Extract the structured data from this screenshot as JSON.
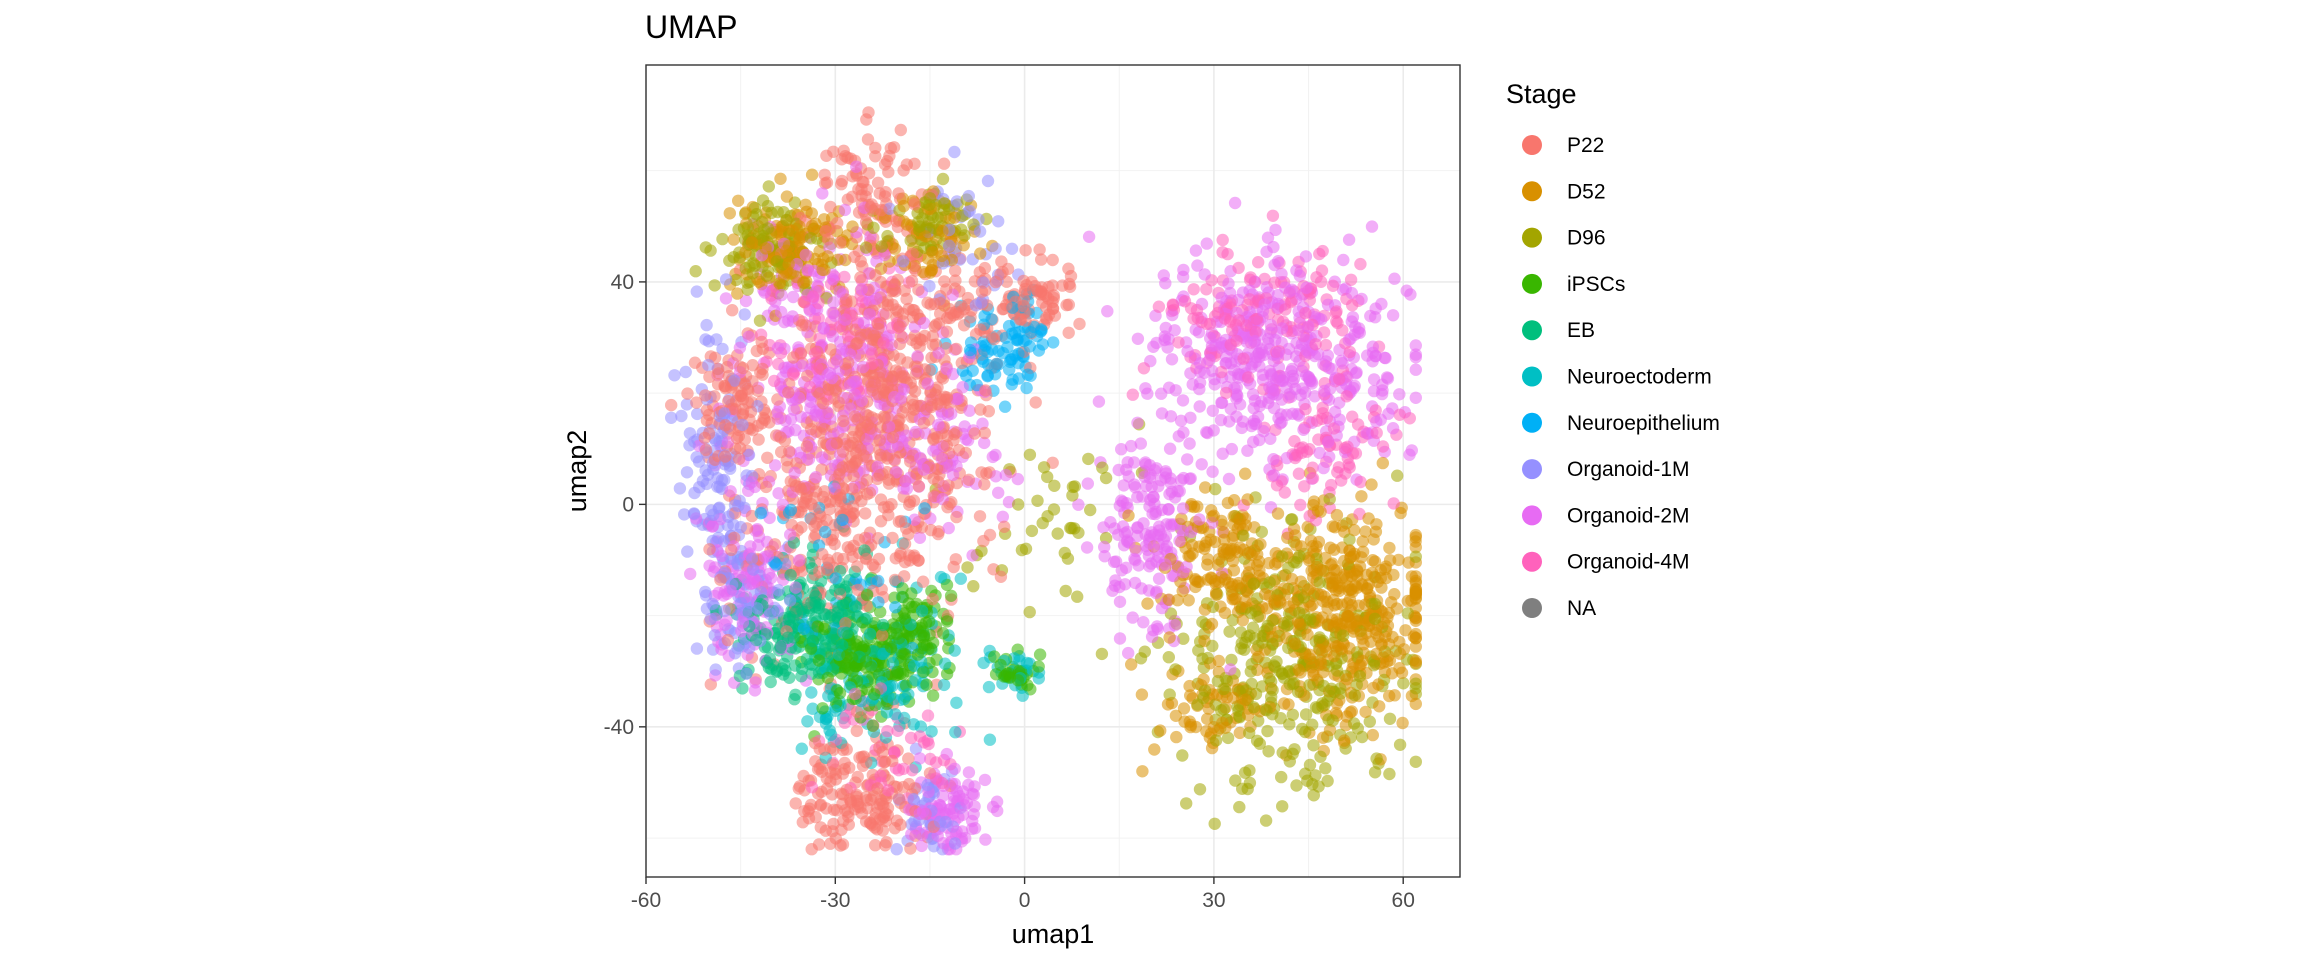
{
  "chart_data": {
    "type": "scatter",
    "title": "UMAP",
    "xlabel": "umap1",
    "ylabel": "umap2",
    "xlim": [
      -60,
      69
    ],
    "ylim": [
      -67,
      79
    ],
    "x_ticks": [
      -60,
      -30,
      0,
      30,
      60
    ],
    "y_ticks": [
      -40,
      0,
      40
    ],
    "x_tick_labels": [
      "-60",
      "-30",
      "0",
      "30",
      "60"
    ],
    "y_tick_labels": [
      "-40",
      "0",
      "40"
    ],
    "grid": true,
    "legend": {
      "title": "Stage",
      "position": "right",
      "entries": [
        {
          "label": "P22",
          "color": "#F8766D"
        },
        {
          "label": "D52",
          "color": "#D89000"
        },
        {
          "label": "D96",
          "color": "#A3A500"
        },
        {
          "label": "iPSCs",
          "color": "#39B600"
        },
        {
          "label": "EB",
          "color": "#00BF7D"
        },
        {
          "label": "Neuroectoderm",
          "color": "#00BFC4"
        },
        {
          "label": "Neuroepithelium",
          "color": "#00B0F6"
        },
        {
          "label": "Organoid-1M",
          "color": "#9590FF"
        },
        {
          "label": "Organoid-2M",
          "color": "#E76BF3"
        },
        {
          "label": "Organoid-4M",
          "color": "#FF62BC"
        },
        {
          "label": "NA",
          "color": "#7F7F7F"
        }
      ]
    },
    "clusters": [
      {
        "series": "P22",
        "cx": -22,
        "cy": 20,
        "sx": 9,
        "sy": 14,
        "n": 520
      },
      {
        "series": "P22",
        "cx": -46,
        "cy": 18,
        "sx": 4,
        "sy": 5,
        "n": 90
      },
      {
        "series": "P22",
        "cx": -26,
        "cy": -52,
        "sx": 5,
        "sy": 5,
        "n": 160
      },
      {
        "series": "P22",
        "cx": -24,
        "cy": 55,
        "sx": 5,
        "sy": 6,
        "n": 90
      },
      {
        "series": "P22",
        "cx": -30,
        "cy": -5,
        "sx": 9,
        "sy": 12,
        "n": 260
      },
      {
        "series": "P22",
        "cx": -8,
        "cy": 36,
        "sx": 8,
        "sy": 4,
        "n": 90
      },
      {
        "series": "P22",
        "cx": 3,
        "cy": 38,
        "sx": 3,
        "sy": 3,
        "n": 35
      },
      {
        "series": "D52",
        "cx": -37,
        "cy": 46,
        "sx": 5,
        "sy": 4,
        "n": 130
      },
      {
        "series": "D52",
        "cx": -15,
        "cy": 48,
        "sx": 4,
        "sy": 4,
        "n": 70
      },
      {
        "series": "D52",
        "cx": 50,
        "cy": -20,
        "sx": 8,
        "sy": 10,
        "n": 430
      },
      {
        "series": "D52",
        "cx": 30,
        "cy": -37,
        "sx": 5,
        "sy": 4,
        "n": 60
      },
      {
        "series": "D52",
        "cx": 30,
        "cy": -10,
        "sx": 5,
        "sy": 6,
        "n": 130
      },
      {
        "series": "D96",
        "cx": -40,
        "cy": 46,
        "sx": 4,
        "sy": 4,
        "n": 110
      },
      {
        "series": "D96",
        "cx": -15,
        "cy": 50,
        "sx": 4,
        "sy": 3,
        "n": 60
      },
      {
        "series": "D96",
        "cx": 42,
        "cy": -28,
        "sx": 9,
        "sy": 12,
        "n": 320
      },
      {
        "series": "D96",
        "cx": 5,
        "cy": -2,
        "sx": 6,
        "sy": 8,
        "n": 40
      },
      {
        "series": "iPSCs",
        "cx": -25,
        "cy": -27,
        "sx": 5,
        "sy": 5,
        "n": 200
      },
      {
        "series": "iPSCs",
        "cx": -1,
        "cy": -30,
        "sx": 1.5,
        "sy": 1.5,
        "n": 30
      },
      {
        "series": "iPSCs",
        "cx": -16,
        "cy": -22,
        "sx": 3,
        "sy": 4,
        "n": 50
      },
      {
        "series": "EB",
        "cx": -35,
        "cy": -22,
        "sx": 5,
        "sy": 6,
        "n": 220
      },
      {
        "series": "Neuroectoderm",
        "cx": -26,
        "cy": -32,
        "sx": 5,
        "sy": 6,
        "n": 90
      },
      {
        "series": "Neuroectoderm",
        "cx": -2,
        "cy": -30,
        "sx": 1.8,
        "sy": 1.8,
        "n": 25
      },
      {
        "series": "Neuroectoderm",
        "cx": -14,
        "cy": -25,
        "sx": 4,
        "sy": 8,
        "n": 40
      },
      {
        "series": "Neuroepithelium",
        "cx": -3,
        "cy": 28,
        "sx": 4,
        "sy": 4,
        "n": 90
      },
      {
        "series": "Neuroepithelium",
        "cx": -30,
        "cy": -10,
        "sx": 8,
        "sy": 8,
        "n": 40
      },
      {
        "series": "Organoid-1M",
        "cx": -48,
        "cy": 4,
        "sx": 3,
        "sy": 14,
        "n": 140
      },
      {
        "series": "Organoid-1M",
        "cx": -44,
        "cy": -15,
        "sx": 3,
        "sy": 6,
        "n": 50
      },
      {
        "series": "Organoid-1M",
        "cx": -10,
        "cy": 48,
        "sx": 4,
        "sy": 6,
        "n": 40
      },
      {
        "series": "Organoid-1M",
        "cx": -15,
        "cy": -55,
        "sx": 3,
        "sy": 4,
        "n": 40
      },
      {
        "series": "Organoid-2M",
        "cx": -30,
        "cy": 25,
        "sx": 8,
        "sy": 12,
        "n": 300
      },
      {
        "series": "Organoid-2M",
        "cx": -44,
        "cy": -15,
        "sx": 4,
        "sy": 8,
        "n": 120
      },
      {
        "series": "Organoid-2M",
        "cx": -12,
        "cy": -55,
        "sx": 3,
        "sy": 4,
        "n": 90
      },
      {
        "series": "Organoid-2M",
        "cx": 40,
        "cy": 26,
        "sx": 10,
        "sy": 9,
        "n": 420
      },
      {
        "series": "Organoid-2M",
        "cx": 20,
        "cy": -6,
        "sx": 4,
        "sy": 9,
        "n": 170
      },
      {
        "series": "Organoid-2M",
        "cx": -12,
        "cy": 10,
        "sx": 6,
        "sy": 8,
        "n": 80
      },
      {
        "series": "Organoid-4M",
        "cx": 38,
        "cy": 34,
        "sx": 8,
        "sy": 6,
        "n": 150
      },
      {
        "series": "Organoid-4M",
        "cx": 48,
        "cy": 10,
        "sx": 5,
        "sy": 6,
        "n": 80
      },
      {
        "series": "Organoid-4M",
        "cx": -30,
        "cy": 30,
        "sx": 6,
        "sy": 7,
        "n": 80
      },
      {
        "series": "Organoid-4M",
        "cx": -22,
        "cy": -45,
        "sx": 6,
        "sy": 6,
        "n": 50
      }
    ]
  }
}
